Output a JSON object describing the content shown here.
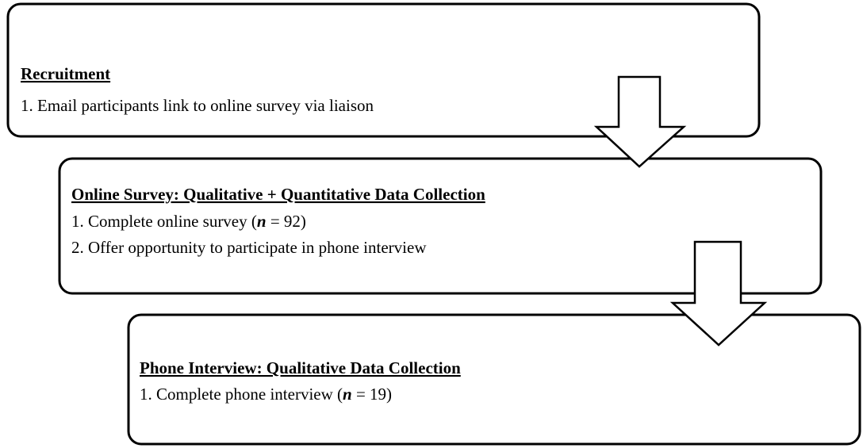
{
  "boxes": [
    {
      "title": "Recruitment",
      "items": [
        [
          "1. Email participants link to online survey via liaison"
        ]
      ]
    },
    {
      "title": "Online Survey: Qualitative + Quantitative Data Collection",
      "items": [
        [
          "1. Complete online survey (",
          "n",
          " = 92)"
        ],
        [
          "2. Offer opportunity to participate in phone interview"
        ]
      ]
    },
    {
      "title": "Phone Interview: Qualitative Data Collection",
      "items": [
        [
          "1. Complete phone interview (",
          "n",
          " = 19)"
        ]
      ]
    }
  ]
}
